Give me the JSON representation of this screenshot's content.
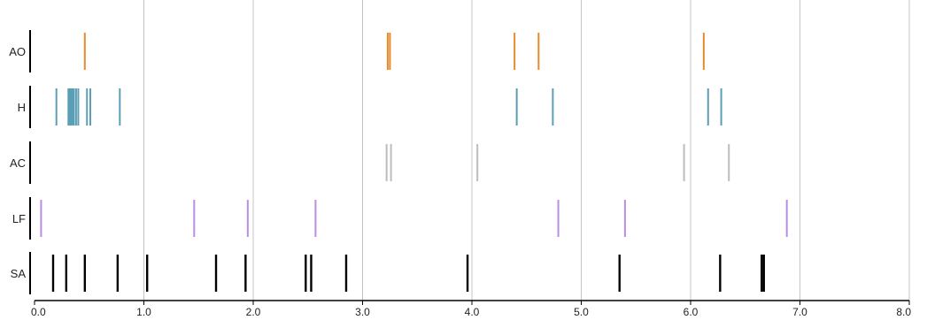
{
  "chart_data": {
    "type": "scatter",
    "title": "",
    "xlabel": "",
    "ylabel": "",
    "xlim": [
      0,
      8
    ],
    "x_ticks": [
      0,
      1,
      2,
      3,
      4,
      5,
      6,
      7,
      8
    ],
    "x_tick_labels": [
      "0.0",
      "1.0",
      "2.0",
      "3.0",
      "4.0",
      "5.0",
      "6.0",
      "7.0",
      "8.0"
    ],
    "grid": true,
    "legend": "none",
    "series": [
      {
        "name": "AO",
        "color": "#e8892a",
        "values": [
          0.46,
          3.23,
          3.25,
          4.39,
          4.61,
          6.12
        ]
      },
      {
        "name": "H",
        "color": "#5a9fb5",
        "values": [
          0.2,
          0.31,
          0.32,
          0.33,
          0.34,
          0.35,
          0.36,
          0.38,
          0.4,
          0.48,
          0.51,
          0.78,
          4.41,
          4.74,
          6.16,
          6.28
        ]
      },
      {
        "name": "AC",
        "color": "#bdbdbd",
        "values": [
          3.22,
          3.26,
          4.05,
          5.94,
          6.35
        ]
      },
      {
        "name": "LF",
        "color": "#b98fe0",
        "values": [
          0.06,
          1.46,
          1.95,
          2.57,
          4.79,
          5.4,
          6.88
        ]
      },
      {
        "name": "SA",
        "color": "#000000",
        "values": [
          0.17,
          0.29,
          0.46,
          0.76,
          1.03,
          1.66,
          1.93,
          2.48,
          2.53,
          2.85,
          3.96,
          5.35,
          6.27,
          6.65,
          6.67
        ]
      }
    ]
  }
}
